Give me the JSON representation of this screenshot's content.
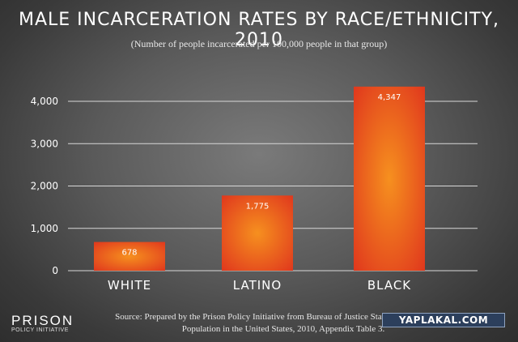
{
  "title": "MALE INCARCERATION RATES BY RACE/ETHNICITY, 2010",
  "subtitle": "(Number of people incarcerated per 100,000 people in that group)",
  "logo": {
    "main": "PRISON",
    "sub": "POLICY INITIATIVE"
  },
  "source": "Source: Prepared by the Prison Policy Initiative from Bureau of Justice Statistics, Correctional Population in the United States, 2010, Appendix Table 3.",
  "watermark": "YAPLAKAL.COM",
  "colors": {
    "bar_edge": "#e0381d",
    "bar_center": "#f47f20",
    "grid": "#d8d8d8"
  },
  "chart_data": {
    "type": "bar",
    "categories": [
      "WHITE",
      "LATINO",
      "BLACK"
    ],
    "values": [
      678,
      1775,
      4347
    ],
    "value_labels": [
      "678",
      "1,775",
      "4,347"
    ],
    "title": "MALE INCARCERATION RATES BY RACE/ETHNICITY, 2010",
    "xlabel": "",
    "ylabel": "",
    "ylim": [
      0,
      4000
    ],
    "yticks": [
      0,
      1000,
      2000,
      3000,
      4000
    ],
    "ytick_labels": [
      "0",
      "1,000",
      "2,000",
      "3,000",
      "4,000"
    ],
    "grid": true,
    "legend": "none"
  }
}
